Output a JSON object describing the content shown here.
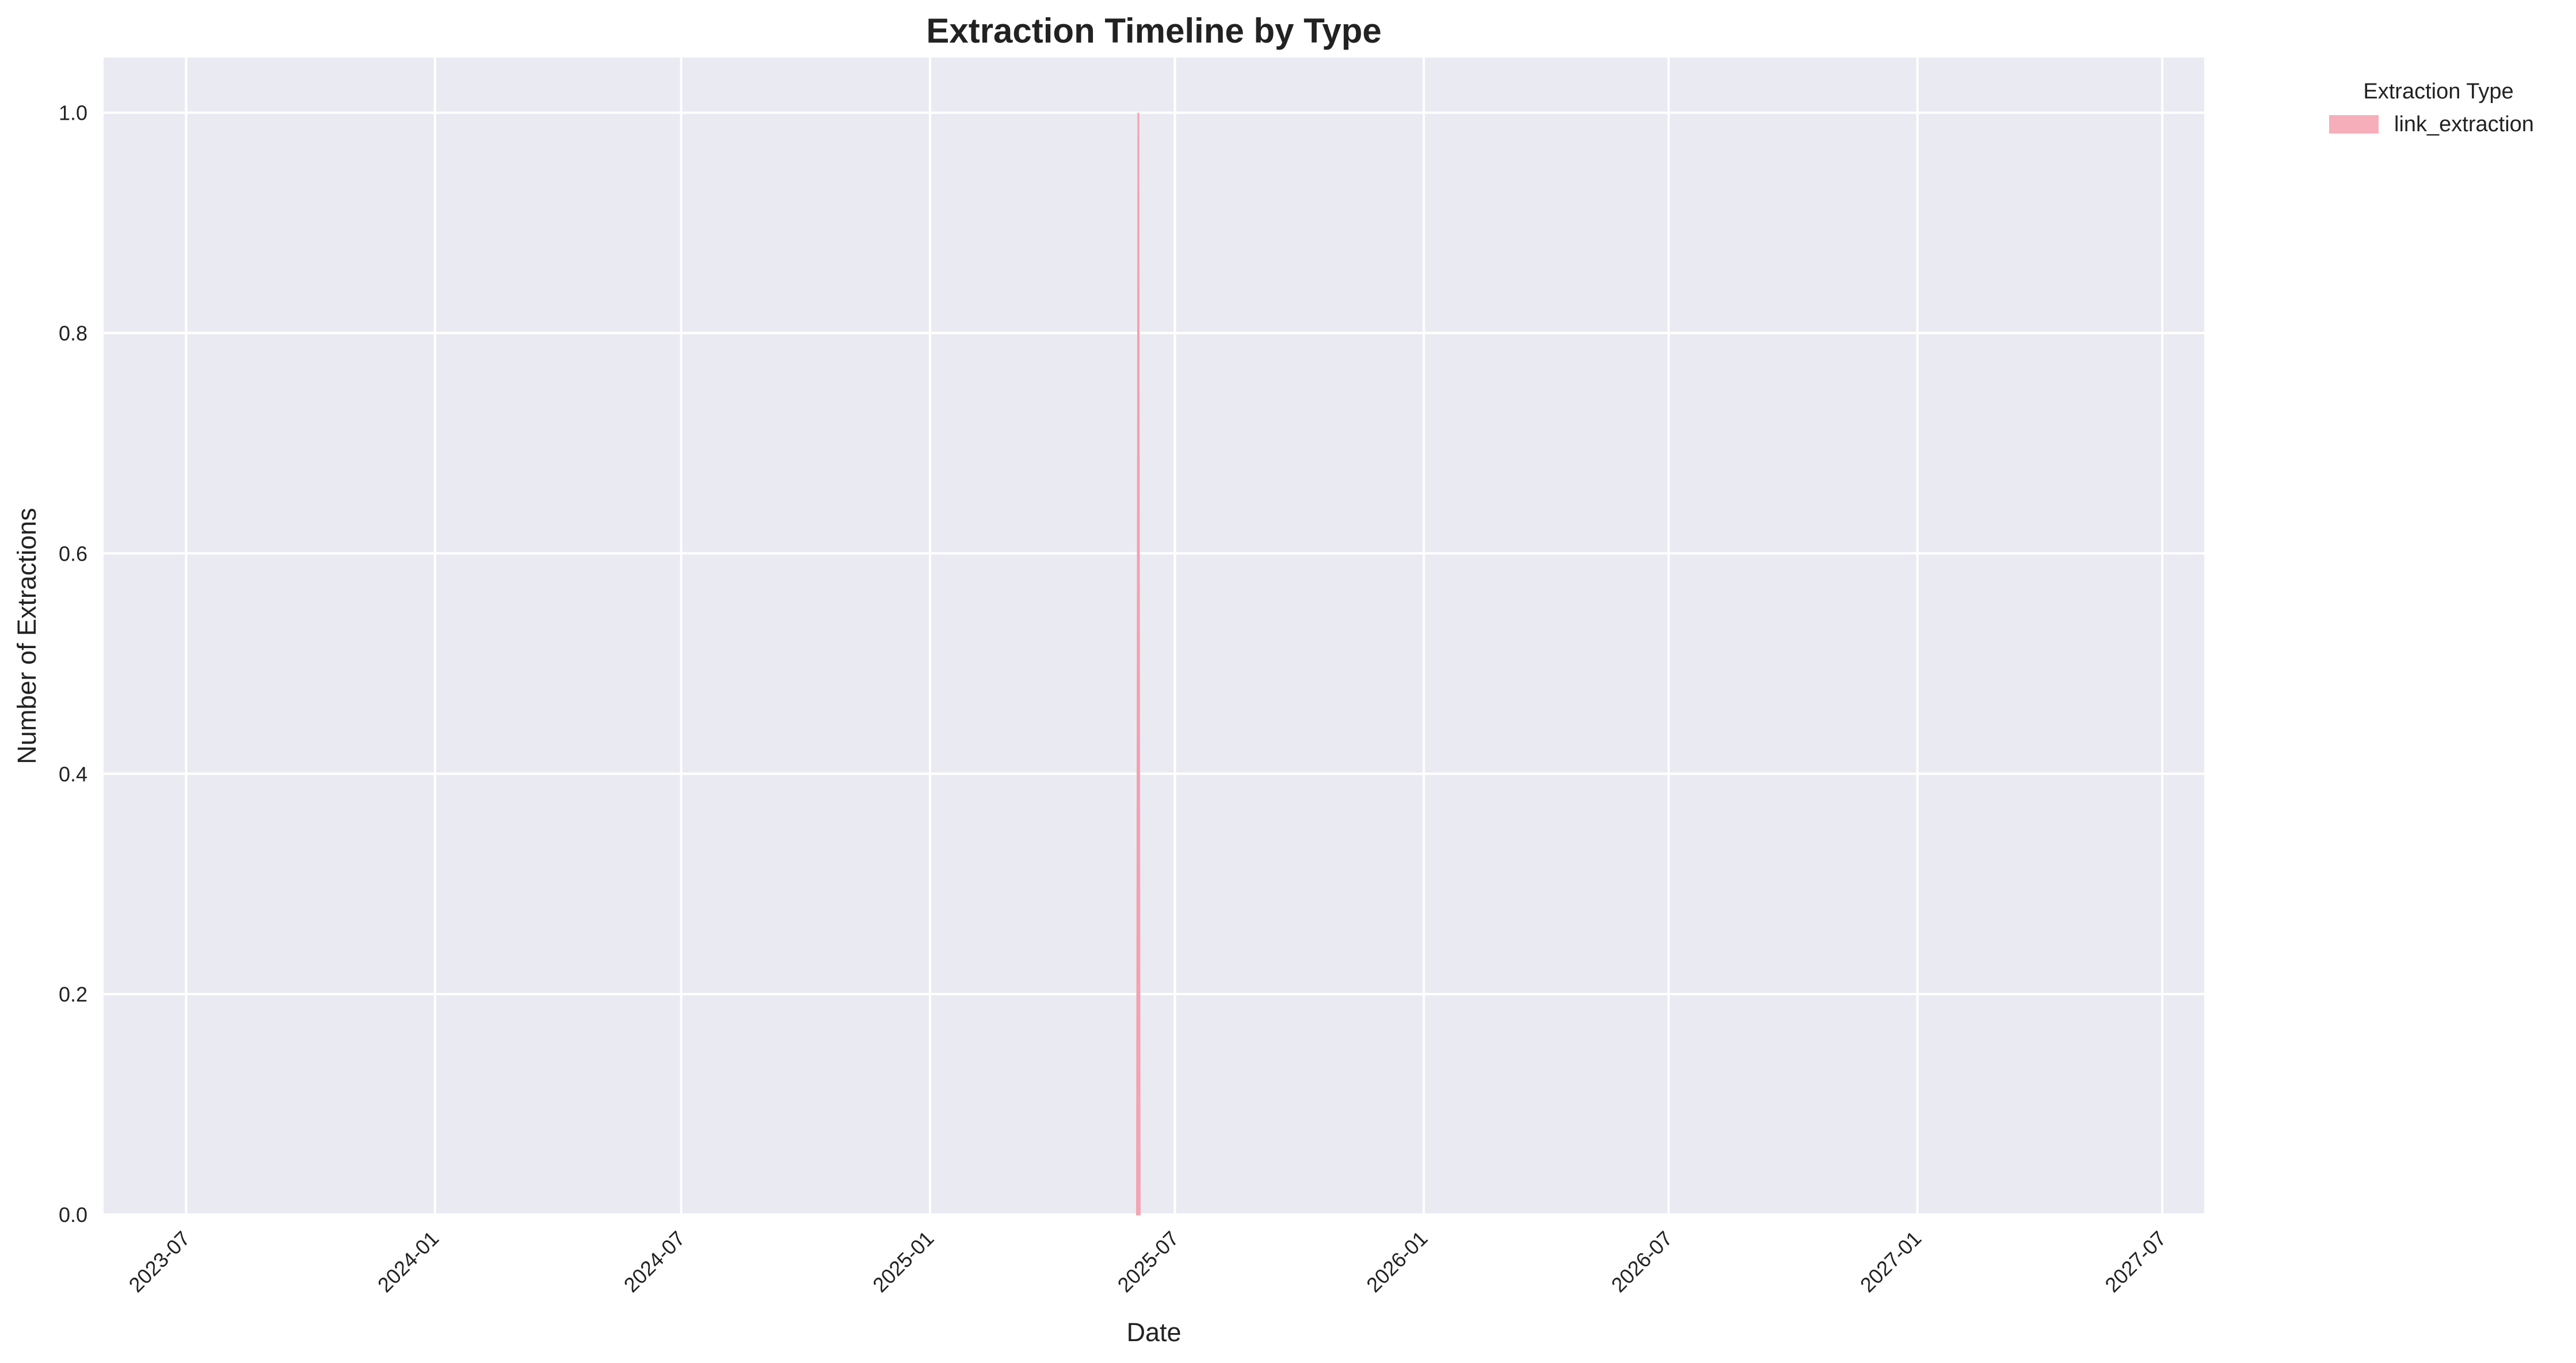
{
  "chart_data": {
    "type": "area",
    "title": "Extraction Timeline by Type",
    "xlabel": "Date",
    "ylabel": "Number of Extractions",
    "x_axis_type": "date",
    "xlim": [
      "2023-05-01",
      "2027-08-01"
    ],
    "ylim": [
      0,
      1.05
    ],
    "x_ticks": [
      {
        "date": "2023-07-01",
        "label": "2023-07"
      },
      {
        "date": "2024-01-01",
        "label": "2024-01"
      },
      {
        "date": "2024-07-01",
        "label": "2024-07"
      },
      {
        "date": "2025-01-01",
        "label": "2025-01"
      },
      {
        "date": "2025-07-01",
        "label": "2025-07"
      },
      {
        "date": "2026-01-01",
        "label": "2026-01"
      },
      {
        "date": "2026-07-01",
        "label": "2026-07"
      },
      {
        "date": "2027-01-01",
        "label": "2027-01"
      },
      {
        "date": "2027-07-01",
        "label": "2027-07"
      }
    ],
    "y_ticks": [
      {
        "value": 0.0,
        "label": "0.0"
      },
      {
        "value": 0.2,
        "label": "0.2"
      },
      {
        "value": 0.4,
        "label": "0.4"
      },
      {
        "value": 0.6,
        "label": "0.6"
      },
      {
        "value": 0.8,
        "label": "0.8"
      },
      {
        "value": 1.0,
        "label": "1.0"
      }
    ],
    "grid": true,
    "legend": {
      "title": "Extraction Type",
      "placement": "outside-top-right"
    },
    "series": [
      {
        "name": "link_extraction",
        "color": "#f4a0ae",
        "points": [
          {
            "date": "2025-06-03",
            "value": 0
          },
          {
            "date": "2025-06-04",
            "value": 1
          },
          {
            "date": "2025-06-05",
            "value": 0
          }
        ]
      }
    ],
    "colors": {
      "plot_background": "#eaeaf2",
      "grid": "#ffffff",
      "text": "#222222"
    }
  }
}
